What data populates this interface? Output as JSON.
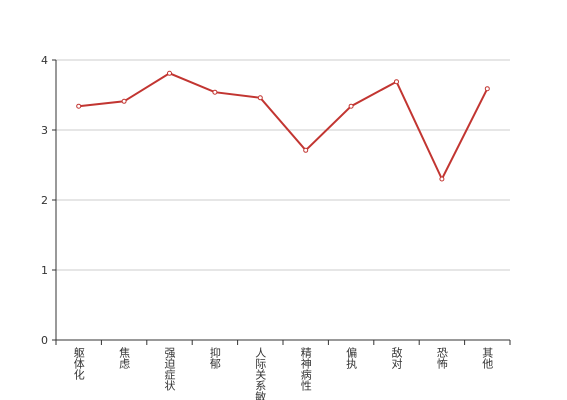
{
  "chart_data": {
    "type": "line",
    "categories": [
      "躯体化",
      "焦虑",
      "强迫症状",
      "抑郁",
      "人际关系敏感",
      "精神病性",
      "偏执",
      "敌对",
      "恐怖",
      "其他"
    ],
    "values": [
      3.34,
      3.41,
      3.81,
      3.54,
      3.46,
      2.71,
      3.34,
      3.69,
      2.3,
      3.59
    ],
    "color": "#c23531",
    "ylim": [
      0,
      4
    ],
    "yticks": [
      0,
      1,
      2,
      3,
      4
    ],
    "grid": true
  }
}
